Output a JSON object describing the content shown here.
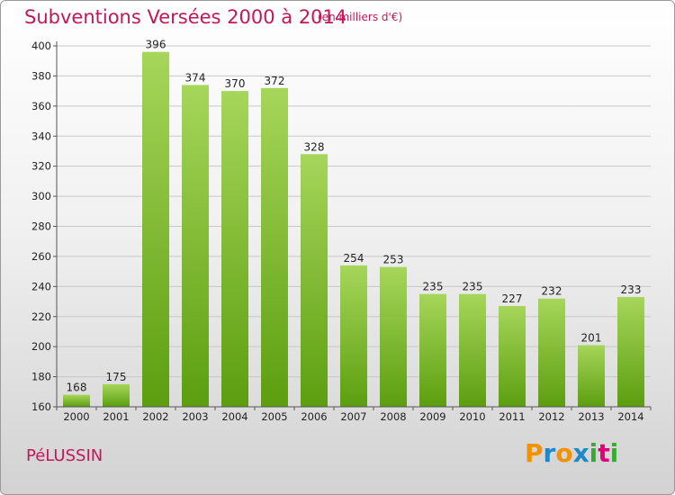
{
  "title": "Subventions Versées 2000 à 2014",
  "subtitle": "(en milliers d'€)",
  "commune": "PéLUSSIN",
  "logo": {
    "letters": [
      "P",
      "r",
      "o",
      "x",
      "i",
      "t",
      "i"
    ],
    "colors": [
      "#f39200",
      "#1e88c8",
      "#f39200",
      "#1e88c8",
      "#3aaa35",
      "#e2007a",
      "#3aaa35"
    ]
  },
  "colors": {
    "bar_light": "#a6d65a",
    "bar_dark": "#5c9e10",
    "title": "#c2185b",
    "grid": "#c8c8c8",
    "axis": "#555555"
  },
  "chart_data": {
    "type": "bar",
    "categories": [
      "2000",
      "2001",
      "2002",
      "2003",
      "2004",
      "2005",
      "2006",
      "2007",
      "2008",
      "2009",
      "2010",
      "2011",
      "2012",
      "2013",
      "2014"
    ],
    "values": [
      168,
      175,
      396,
      374,
      370,
      372,
      328,
      254,
      253,
      235,
      235,
      227,
      232,
      201,
      233
    ],
    "ylim": [
      160,
      400
    ],
    "yticks": [
      160,
      180,
      200,
      220,
      240,
      260,
      280,
      300,
      320,
      340,
      360,
      380,
      400
    ],
    "grid": true,
    "data_labels": true
  }
}
